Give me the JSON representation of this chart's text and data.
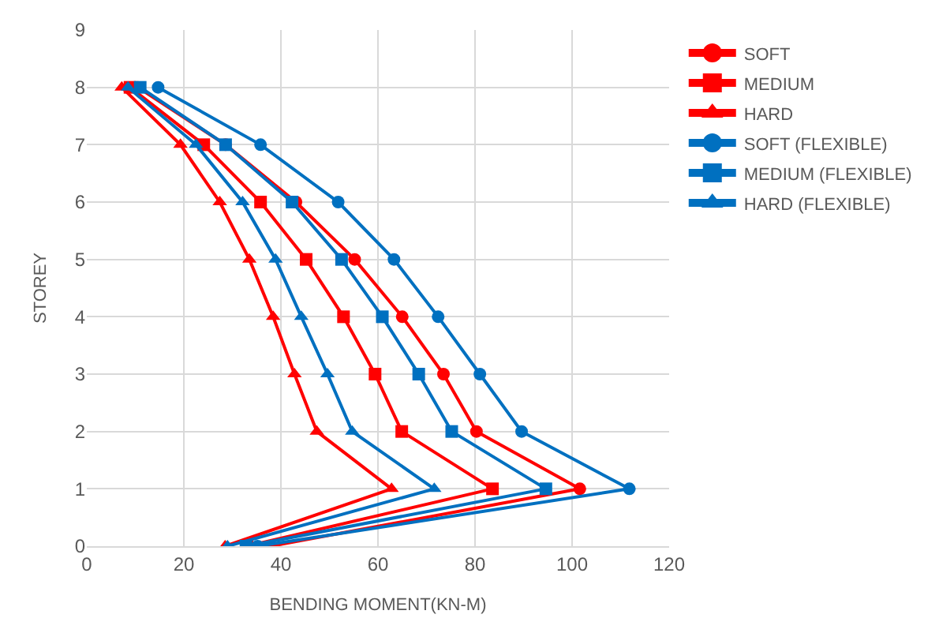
{
  "chart_data": {
    "type": "line",
    "xlabel": "BENDING MOMENT(KN-M)",
    "ylabel": "STOREY",
    "xlim": [
      0,
      120
    ],
    "xticks": [
      0,
      20,
      40,
      60,
      80,
      100,
      120
    ],
    "ylim": [
      0,
      9
    ],
    "yticks": [
      0,
      1,
      2,
      3,
      4,
      5,
      6,
      7,
      8,
      9
    ],
    "grid": true,
    "legend": "right",
    "line_style": "solid",
    "series": [
      {
        "name": "SOFT",
        "color": "#ff0000",
        "marker": "circle",
        "x": [
          37.9,
          101.6,
          80.3,
          73.5,
          65,
          55.2,
          43.1,
          28.6,
          10.5
        ],
        "values": [
          0,
          1,
          2,
          3,
          4,
          5,
          6,
          7,
          8
        ]
      },
      {
        "name": "MEDIUM",
        "color": "#ff0000",
        "marker": "square",
        "x": [
          33,
          83.6,
          64.9,
          59.4,
          52.9,
          45.2,
          35.8,
          24.1,
          8.9
        ],
        "values": [
          0,
          1,
          2,
          3,
          4,
          5,
          6,
          7,
          8
        ]
      },
      {
        "name": "HARD",
        "color": "#ff0000",
        "marker": "triangle",
        "x": [
          28.5,
          62.8,
          47.4,
          42.8,
          38.4,
          33.5,
          27.4,
          19.3,
          7.2
        ],
        "values": [
          0,
          1,
          2,
          3,
          4,
          5,
          6,
          7,
          8
        ]
      },
      {
        "name": "SOFT (FLEXIBLE)",
        "color": "#0070c0",
        "marker": "circle",
        "x": [
          35.2,
          111.8,
          89.6,
          81,
          72.4,
          63.3,
          51.8,
          35.8,
          14.7
        ],
        "values": [
          0,
          1,
          2,
          3,
          4,
          5,
          6,
          7,
          8
        ]
      },
      {
        "name": "MEDIUM (FLEXIBLE)",
        "color": "#0070c0",
        "marker": "square",
        "x": [
          32.8,
          94.6,
          75.2,
          68.4,
          60.9,
          52.5,
          42.3,
          28.6,
          11
        ],
        "values": [
          0,
          1,
          2,
          3,
          4,
          5,
          6,
          7,
          8
        ]
      },
      {
        "name": "HARD (FLEXIBLE)",
        "color": "#0070c0",
        "marker": "triangle",
        "x": [
          29,
          71.6,
          54.7,
          49.6,
          44.2,
          38.9,
          32.1,
          22.5,
          8.5
        ],
        "values": [
          0,
          1,
          2,
          3,
          4,
          5,
          6,
          7,
          8
        ]
      }
    ]
  }
}
